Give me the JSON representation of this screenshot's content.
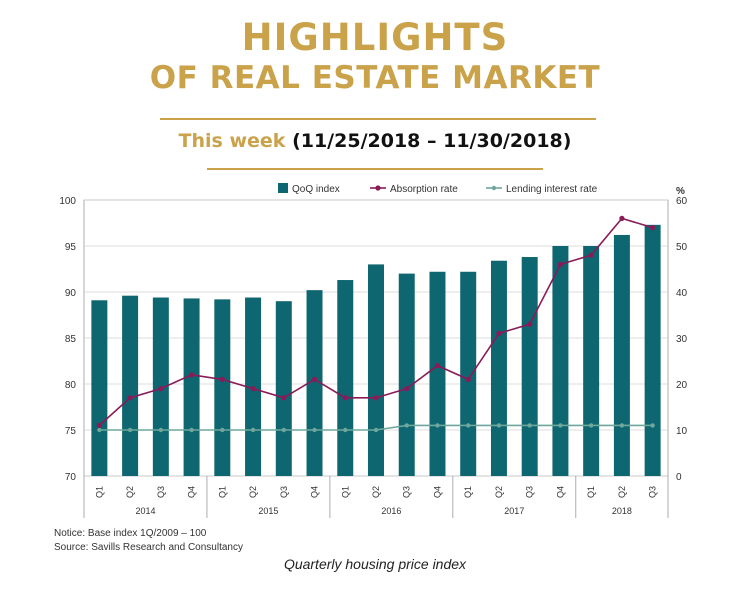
{
  "header": {
    "title_line1": "HIGHLIGHTS",
    "title_line2": "OF REAL ESTATE MARKET",
    "week_label": "This week",
    "week_range": "(11/25/2018 – 11/30/2018)"
  },
  "footer": {
    "notice": "Notice: Base index 1Q/2009 – 100",
    "source": "Source: Savills Research and Consultancy",
    "caption": "Quarterly housing price index"
  },
  "colors": {
    "gold": "#c9a24a",
    "bar": "#0d6670",
    "absorption": "#8a1b58",
    "lending": "#6fa79c"
  },
  "chart_data": {
    "type": "bar",
    "categories": [
      "Q1",
      "Q2",
      "Q3",
      "Q4",
      "Q1",
      "Q2",
      "Q3",
      "Q4",
      "Q1",
      "Q2",
      "Q3",
      "Q4",
      "Q1",
      "Q2",
      "Q3",
      "Q4",
      "Q1",
      "Q2",
      "Q3"
    ],
    "years": [
      {
        "label": "2014",
        "count": 4
      },
      {
        "label": "2015",
        "count": 4
      },
      {
        "label": "2016",
        "count": 4
      },
      {
        "label": "2017",
        "count": 4
      },
      {
        "label": "2018",
        "count": 3
      }
    ],
    "y_left": {
      "min": 70,
      "max": 100,
      "ticks": [
        70,
        75,
        80,
        85,
        90,
        95,
        100
      ]
    },
    "y_right": {
      "min": 0,
      "max": 60,
      "ticks": [
        0,
        10,
        20,
        30,
        40,
        50,
        60
      ],
      "unit": "%"
    },
    "series": [
      {
        "name": "QoQ index",
        "type": "bar",
        "axis": "left",
        "values": [
          89.1,
          89.6,
          89.4,
          89.3,
          89.2,
          89.4,
          89.0,
          90.2,
          91.3,
          93.0,
          92.0,
          92.2,
          92.2,
          93.4,
          93.8,
          95.0,
          95.0,
          96.2,
          97.3
        ]
      },
      {
        "name": "Absorption rate",
        "type": "line",
        "axis": "right",
        "values": [
          11,
          17,
          19,
          22,
          21,
          19,
          17,
          21,
          17,
          17,
          19,
          24,
          21,
          31,
          33,
          46,
          48,
          56,
          54
        ]
      },
      {
        "name": "Lending interest rate",
        "type": "line",
        "axis": "right",
        "values": [
          10,
          10,
          10,
          10,
          10,
          10,
          10,
          10,
          10,
          10,
          11,
          11,
          11,
          11,
          11,
          11,
          11,
          11,
          11
        ]
      }
    ]
  }
}
